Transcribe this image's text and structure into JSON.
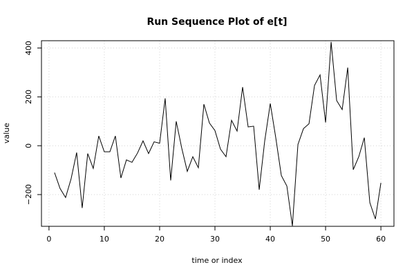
{
  "chart_data": {
    "type": "line",
    "title": "Run Sequence Plot of e[t]",
    "xlabel": "time or index",
    "ylabel": "value",
    "xlim": [
      0,
      60
    ],
    "ylim": [
      -330,
      430
    ],
    "x_ticks": [
      0,
      10,
      20,
      30,
      40,
      50,
      60
    ],
    "x_tick_labels": [
      "0",
      "10",
      "20",
      "30",
      "40",
      "50",
      "60"
    ],
    "y_ticks": [
      -200,
      0,
      200,
      400
    ],
    "y_tick_labels": [
      "−200",
      "0",
      "200",
      "400"
    ],
    "grid": true,
    "series": [
      {
        "color": "#000000",
        "x": [
          1,
          2,
          3,
          4,
          5,
          6,
          7,
          8,
          9,
          10,
          11,
          12,
          13,
          14,
          15,
          16,
          17,
          18,
          19,
          20,
          21,
          22,
          23,
          24,
          25,
          26,
          27,
          28,
          29,
          30,
          31,
          32,
          33,
          34,
          35,
          36,
          37,
          38,
          39,
          40,
          41,
          42,
          43,
          44,
          45,
          46,
          47,
          48,
          49,
          50,
          51,
          52,
          53,
          54,
          55,
          56,
          57,
          58,
          59,
          60
        ],
        "values": [
          -110,
          -175,
          -212,
          -135,
          -28,
          -255,
          -32,
          -93,
          40,
          -25,
          -25,
          40,
          -132,
          -58,
          -68,
          -30,
          20,
          -32,
          16,
          10,
          194,
          -142,
          100,
          -10,
          -105,
          -45,
          -90,
          170,
          93,
          62,
          -14,
          -45,
          104,
          60,
          240,
          77,
          80,
          -180,
          20,
          173,
          32,
          -122,
          -165,
          -328,
          5,
          70,
          90,
          247,
          290,
          95,
          425,
          185,
          148,
          320,
          -98,
          -45,
          33,
          -233,
          -300,
          -152
        ]
      }
    ]
  }
}
